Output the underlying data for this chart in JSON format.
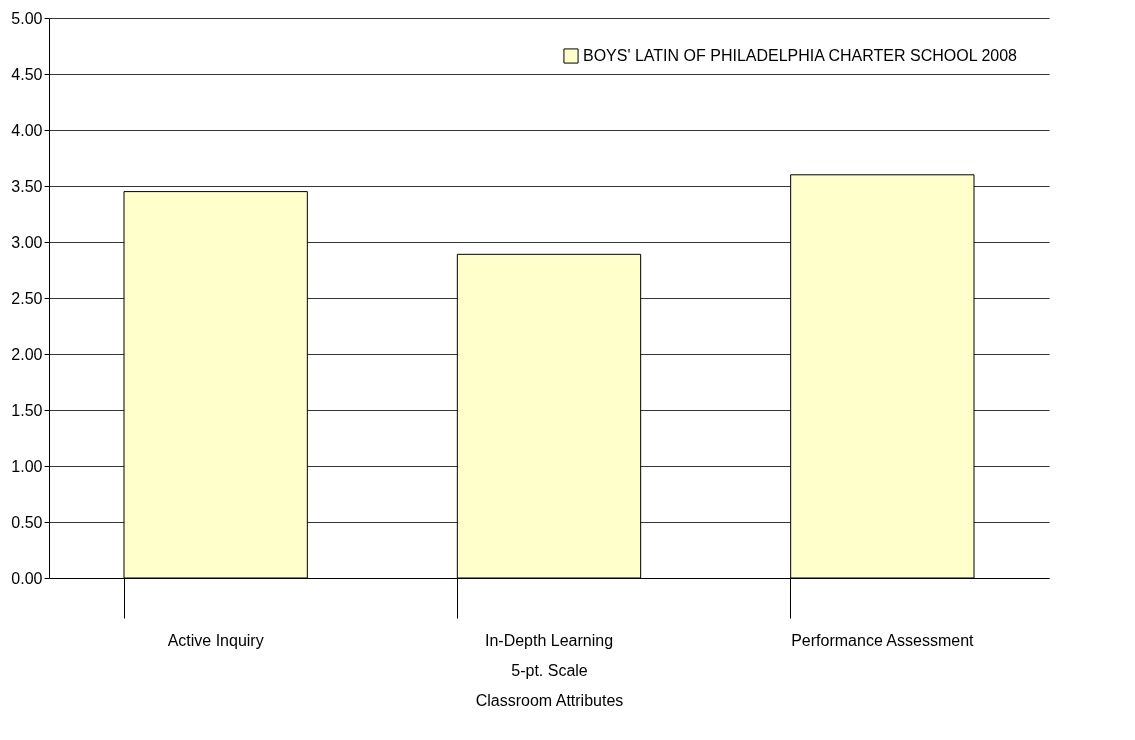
{
  "chart_data": {
    "type": "bar",
    "xlabel": "Classroom Attributes",
    "annotations": [
      "5-pt. Scale"
    ],
    "categories": [
      "Active Inquiry",
      "In-Depth Learning",
      "Performance Assessment"
    ],
    "series": [
      {
        "name": "BOYS' LATIN OF PHILADELPHIA CHARTER SCHOOL 2008",
        "color": "#ffffcc",
        "values": [
          3.45,
          2.89,
          3.6
        ]
      }
    ],
    "ylim": [
      0,
      5
    ],
    "yticks": [
      {
        "value": 0,
        "label": "0.00"
      },
      {
        "value": 0.5,
        "label": "0.50"
      },
      {
        "value": 1,
        "label": "1.00"
      },
      {
        "value": 1.5,
        "label": "1.50"
      },
      {
        "value": 2,
        "label": "2.00"
      },
      {
        "value": 2.5,
        "label": "2.50"
      },
      {
        "value": 3,
        "label": "3.00"
      },
      {
        "value": 3.5,
        "label": "3.50"
      },
      {
        "value": 4,
        "label": "4.00"
      },
      {
        "value": 4.5,
        "label": "4.50"
      },
      {
        "value": 5,
        "label": "5.00"
      }
    ],
    "grid": "y",
    "legend": "top right"
  }
}
